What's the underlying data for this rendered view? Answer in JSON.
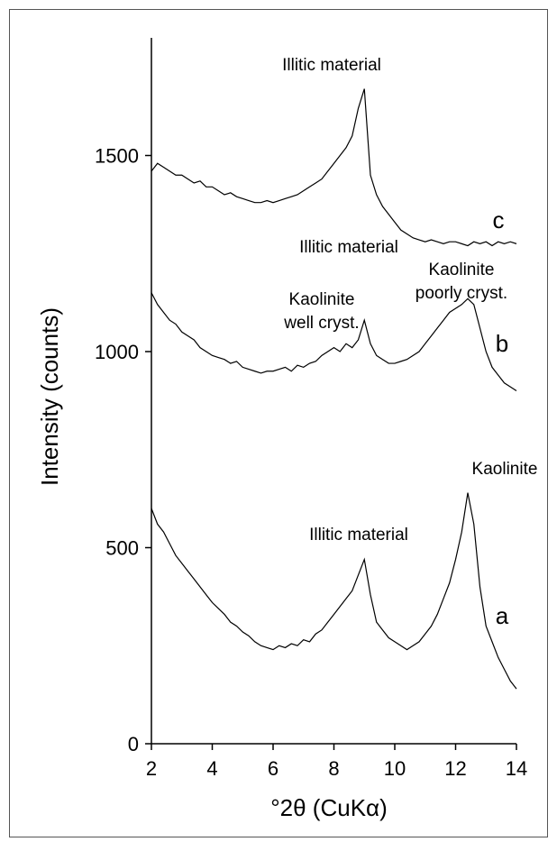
{
  "chart_data": {
    "type": "line",
    "xlabel": "°2θ (CuKα)",
    "ylabel": "Intensity (counts)",
    "xlim": [
      2,
      14
    ],
    "ylim": [
      0,
      1800
    ],
    "xticks": [
      2,
      4,
      6,
      8,
      10,
      12,
      14
    ],
    "yticks": [
      0,
      500,
      1000,
      1500
    ],
    "grid": false,
    "x": [
      2.0,
      2.2,
      2.4,
      2.6,
      2.8,
      3.0,
      3.2,
      3.4,
      3.6,
      3.8,
      4.0,
      4.2,
      4.4,
      4.6,
      4.8,
      5.0,
      5.2,
      5.4,
      5.6,
      5.8,
      6.0,
      6.2,
      6.4,
      6.6,
      6.8,
      7.0,
      7.2,
      7.4,
      7.6,
      7.8,
      8.0,
      8.2,
      8.4,
      8.6,
      8.8,
      9.0,
      9.2,
      9.4,
      9.6,
      9.8,
      10.0,
      10.2,
      10.4,
      10.6,
      10.8,
      11.0,
      11.2,
      11.4,
      11.6,
      11.8,
      12.0,
      12.2,
      12.4,
      12.6,
      12.8,
      13.0,
      13.2,
      13.4,
      13.6,
      13.8,
      14.0
    ],
    "series": [
      {
        "name": "a",
        "color": "#000000",
        "values": [
          600,
          560,
          540,
          510,
          480,
          460,
          440,
          420,
          400,
          380,
          360,
          345,
          330,
          310,
          300,
          285,
          275,
          260,
          250,
          245,
          240,
          250,
          245,
          255,
          250,
          265,
          260,
          280,
          290,
          310,
          330,
          350,
          370,
          390,
          430,
          470,
          380,
          310,
          290,
          270,
          260,
          250,
          240,
          250,
          260,
          280,
          300,
          330,
          370,
          410,
          470,
          540,
          640,
          560,
          400,
          300,
          260,
          220,
          190,
          160,
          140
        ]
      },
      {
        "name": "b",
        "color": "#000000",
        "values": [
          1150,
          1120,
          1100,
          1080,
          1070,
          1050,
          1040,
          1030,
          1010,
          1000,
          990,
          985,
          980,
          970,
          975,
          960,
          955,
          950,
          945,
          950,
          950,
          955,
          960,
          950,
          965,
          960,
          970,
          975,
          990,
          1000,
          1010,
          1000,
          1020,
          1010,
          1030,
          1080,
          1020,
          990,
          980,
          970,
          970,
          975,
          980,
          990,
          1000,
          1020,
          1040,
          1060,
          1080,
          1100,
          1110,
          1120,
          1135,
          1120,
          1060,
          1000,
          960,
          940,
          920,
          910,
          900
        ]
      },
      {
        "name": "c",
        "color": "#000000",
        "values": [
          1460,
          1480,
          1470,
          1460,
          1450,
          1450,
          1440,
          1430,
          1435,
          1420,
          1420,
          1410,
          1400,
          1405,
          1395,
          1390,
          1385,
          1380,
          1380,
          1385,
          1380,
          1385,
          1390,
          1395,
          1400,
          1410,
          1420,
          1430,
          1440,
          1460,
          1480,
          1500,
          1520,
          1550,
          1620,
          1670,
          1450,
          1400,
          1370,
          1350,
          1330,
          1310,
          1300,
          1290,
          1285,
          1280,
          1285,
          1280,
          1275,
          1280,
          1280,
          1275,
          1270,
          1280,
          1275,
          1280,
          1270,
          1280,
          1275,
          1280,
          1275
        ]
      }
    ],
    "annotations": [
      [
        "Illitic material"
      ],
      [
        "Illitic material"
      ],
      [
        "Kaolinite",
        "well cryst."
      ],
      [
        "Kaolinite",
        "poorly cryst."
      ],
      [
        "Illitic material"
      ],
      [
        "Kaolinite"
      ]
    ]
  }
}
